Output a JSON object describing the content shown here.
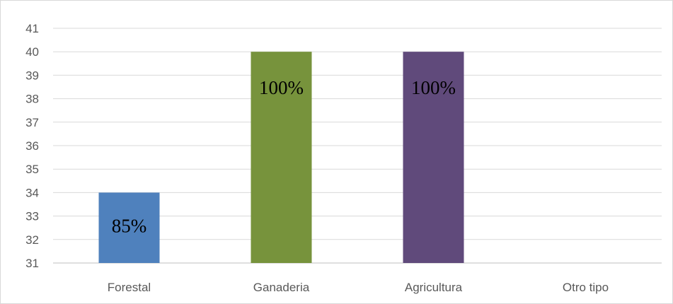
{
  "chart_data": {
    "type": "bar",
    "categories": [
      "Forestal",
      "Ganaderia",
      "Agricultura",
      "Otro tipo"
    ],
    "values": [
      34,
      40,
      40,
      null
    ],
    "data_labels": [
      "85%",
      "100%",
      "100%",
      ""
    ],
    "colors": [
      "#4f81bd",
      "#77933c",
      "#604a7b",
      "#9bbb59"
    ],
    "title": "",
    "xlabel": "",
    "ylabel": "",
    "ylim": [
      31,
      41
    ],
    "yticks": [
      31,
      32,
      33,
      34,
      35,
      36,
      37,
      38,
      39,
      40,
      41
    ],
    "grid": true,
    "legend": "none"
  }
}
